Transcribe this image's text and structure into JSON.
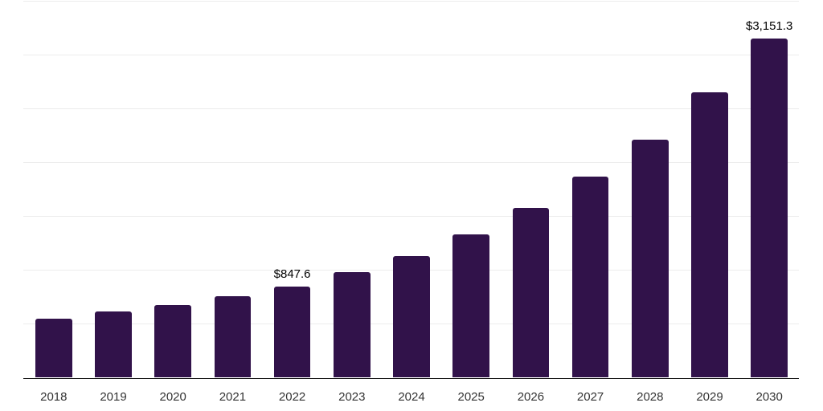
{
  "chart_data": {
    "type": "bar",
    "title": "",
    "xlabel": "",
    "ylabel": "",
    "categories": [
      "2018",
      "2019",
      "2020",
      "2021",
      "2022",
      "2023",
      "2024",
      "2025",
      "2026",
      "2027",
      "2028",
      "2029",
      "2030"
    ],
    "values": [
      546,
      614,
      676,
      753,
      847.6,
      980,
      1133,
      1334,
      1575,
      1866,
      2214,
      2647,
      3151.3
    ],
    "data_labels": [
      "",
      "",
      "",
      "",
      "$847.6",
      "",
      "",
      "",
      "",
      "",
      "",
      "",
      "$3,151.3"
    ],
    "ylim": [
      0,
      3500
    ],
    "grid_step": 500,
    "grid": true,
    "y_tick_labels_visible": false,
    "legend_position": "none",
    "colors": {
      "bar": "#31124A",
      "gridline": "#ECECEC",
      "axis_line": "#1A1A1A",
      "value_label": "#000000",
      "tick_label": "#333333",
      "background": "#FFFFFF"
    }
  }
}
